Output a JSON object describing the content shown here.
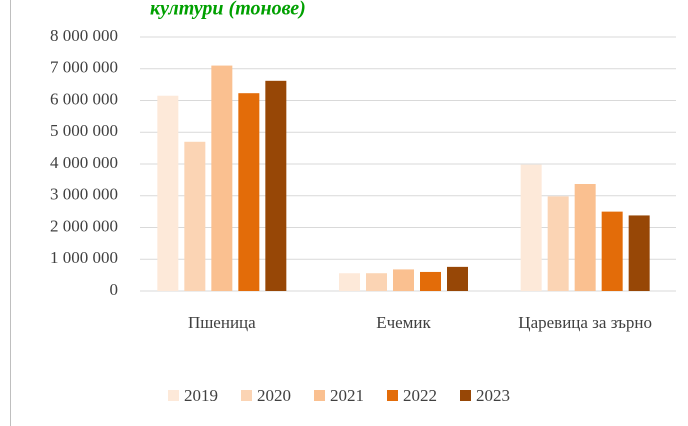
{
  "chart_data": {
    "type": "bar",
    "title": "култури (тонове)",
    "categories": [
      "Пшеница",
      "Ечемик",
      "Царевица за зърно"
    ],
    "series": [
      {
        "name": "2019",
        "color": "#fde9d9",
        "values": [
          6150000,
          560000,
          3980000
        ]
      },
      {
        "name": "2020",
        "color": "#fbd4b4",
        "values": [
          4700000,
          560000,
          2980000
        ]
      },
      {
        "name": "2021",
        "color": "#fac090",
        "values": [
          7100000,
          680000,
          3370000
        ]
      },
      {
        "name": "2022",
        "color": "#e36c09",
        "values": [
          6230000,
          600000,
          2500000
        ]
      },
      {
        "name": "2023",
        "color": "#974706",
        "values": [
          6620000,
          760000,
          2380000
        ]
      }
    ],
    "ylim": [
      0,
      8000000
    ],
    "yticks": [
      {
        "value": 0,
        "label": "0"
      },
      {
        "value": 1000000,
        "label": "1 000 000"
      },
      {
        "value": 2000000,
        "label": "2 000 000"
      },
      {
        "value": 3000000,
        "label": "3 000 000"
      },
      {
        "value": 4000000,
        "label": "4 000 000"
      },
      {
        "value": 5000000,
        "label": "5 000 000"
      },
      {
        "value": 6000000,
        "label": "6 000 000"
      },
      {
        "value": 7000000,
        "label": "7 000 000"
      },
      {
        "value": 8000000,
        "label": "8 000 000"
      }
    ],
    "grid": true,
    "legend": "bottom"
  }
}
